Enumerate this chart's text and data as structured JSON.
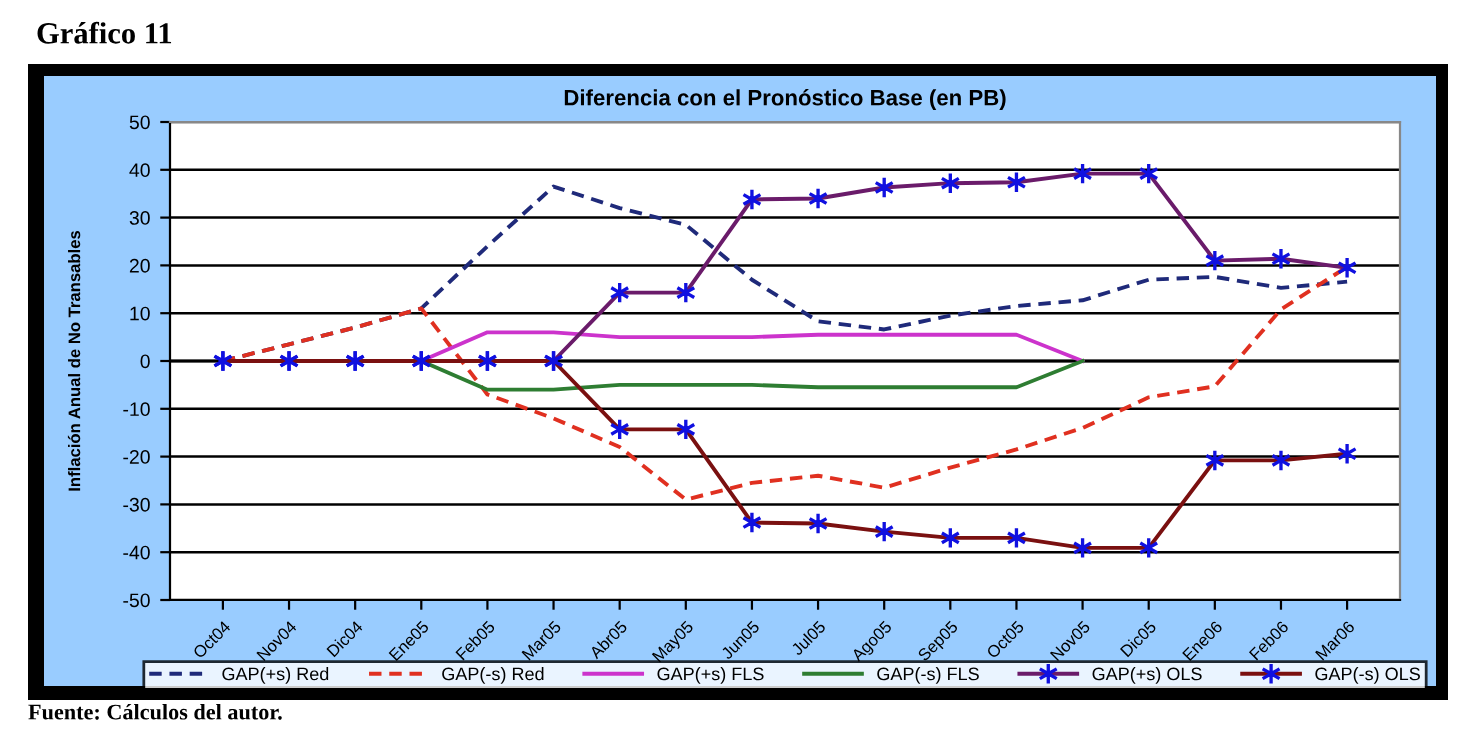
{
  "chart_data": {
    "type": "line",
    "title": "Diferencia con el Pronóstico Base (en PB)",
    "ylabel": "Inflación Anual de No Transables",
    "categories": [
      "Oct04",
      "Nov04",
      "Dic04",
      "Ene05",
      "Feb05",
      "Mar05",
      "Abr05",
      "May05",
      "Jun05",
      "Jul05",
      "Ago05",
      "Sep05",
      "Oct05",
      "Nov05",
      "Dic05",
      "Ene06",
      "Feb06",
      "Mar06"
    ],
    "series": [
      {
        "name": "GAP(+s) Red",
        "color": "#1f2a7a",
        "line_style": "dashed",
        "marker": "none",
        "values": [
          0,
          3.5,
          7,
          11,
          24,
          36.5,
          32,
          28.5,
          17,
          8.3,
          6.6,
          9.5,
          11.5,
          12.7,
          17,
          17.6,
          15.3,
          16.6
        ]
      },
      {
        "name": "GAP(-s) Red",
        "color": "#e03020",
        "line_style": "dashed",
        "marker": "none",
        "values": [
          0,
          3.5,
          7,
          11,
          -7,
          -12,
          -18,
          -29,
          -25.5,
          -24,
          -26.5,
          -22.3,
          -18.5,
          -14,
          -7.6,
          -5.3,
          10.8,
          19.7
        ]
      },
      {
        "name": "GAP(+s) FLS",
        "color": "#cc33cc",
        "line_style": "solid",
        "marker": "none",
        "values": [
          null,
          null,
          null,
          0,
          6,
          6,
          5,
          5,
          5,
          5.5,
          5.5,
          5.5,
          5.5,
          0,
          null,
          null,
          null,
          null
        ]
      },
      {
        "name": "GAP(-s) FLS",
        "color": "#2e7d32",
        "line_style": "solid",
        "marker": "none",
        "values": [
          null,
          null,
          null,
          0,
          -6,
          -6,
          -5,
          -5,
          -5,
          -5.5,
          -5.5,
          -5.5,
          -5.5,
          0,
          null,
          null,
          null,
          null
        ]
      },
      {
        "name": "GAP(+s) OLS",
        "color": "#6a1b6a",
        "line_style": "solid",
        "marker": "cross",
        "values": [
          0,
          0,
          0,
          0,
          0,
          0,
          14.3,
          14.3,
          33.8,
          34,
          36.3,
          37.2,
          37.4,
          39.2,
          39.2,
          21,
          21.4,
          19.5
        ]
      },
      {
        "name": "GAP(-s) OLS",
        "color": "#7a1010",
        "line_style": "solid",
        "marker": "cross",
        "values": [
          0,
          0,
          0,
          0,
          0,
          0,
          -14.3,
          -14.3,
          -33.8,
          -34,
          -35.7,
          -37,
          -37,
          -39.1,
          -39.1,
          -20.8,
          -20.8,
          -19.4
        ]
      }
    ],
    "ylim": [
      -50,
      50
    ],
    "yticks": [
      -50,
      -40,
      -30,
      -20,
      -10,
      0,
      10,
      20,
      30,
      40,
      50
    ],
    "grid": "y",
    "legend": "bottom",
    "annotations": [
      "Gráfico 11",
      "Fuente: Cálculos del autor."
    ]
  }
}
